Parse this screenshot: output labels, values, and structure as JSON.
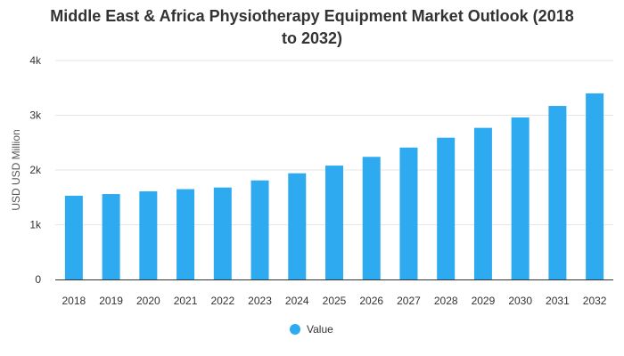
{
  "chart_data": {
    "type": "bar",
    "title": "Middle East & Africa Physiotherapy Equipment Market Outlook (2018 to 2032)",
    "title_lines": [
      "Middle East & Africa Physiotherapy Equipment Market Outlook (2018",
      "to 2032)"
    ],
    "xlabel": "",
    "ylabel": "USD USD Million",
    "categories": [
      "2018",
      "2019",
      "2020",
      "2021",
      "2022",
      "2023",
      "2024",
      "2025",
      "2026",
      "2027",
      "2028",
      "2029",
      "2030",
      "2031",
      "2032"
    ],
    "series": [
      {
        "name": "Value",
        "values": [
          1530,
          1560,
          1610,
          1650,
          1680,
          1810,
          1940,
          2080,
          2240,
          2410,
          2590,
          2770,
          2960,
          3170,
          3400
        ],
        "color": "#2eaaf0"
      }
    ],
    "ylim": [
      0,
      4000
    ],
    "yticks": [
      0,
      1000,
      2000,
      3000,
      4000
    ],
    "ytick_labels": [
      "0",
      "1k",
      "2k",
      "3k",
      "4k"
    ],
    "grid": true,
    "legend_position": "bottom-center"
  }
}
